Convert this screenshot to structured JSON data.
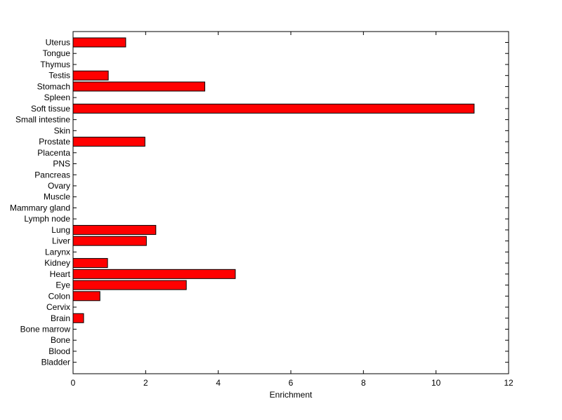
{
  "chart_data": {
    "type": "bar",
    "orientation": "horizontal",
    "categories": [
      "Uterus",
      "Tongue",
      "Thymus",
      "Testis",
      "Stomach",
      "Spleen",
      "Soft tissue",
      "Small intestine",
      "Skin",
      "Prostate",
      "Placenta",
      "PNS",
      "Pancreas",
      "Ovary",
      "Muscle",
      "Mammary gland",
      "Lymph node",
      "Lung",
      "Liver",
      "Larynx",
      "Kidney",
      "Heart",
      "Eye",
      "Colon",
      "Cervix",
      "Brain",
      "Bone marrow",
      "Bone",
      "Blood",
      "Bladder"
    ],
    "values": [
      1.45,
      0,
      0,
      0.97,
      3.63,
      0,
      11.05,
      0,
      0,
      1.98,
      0,
      0,
      0,
      0,
      0,
      0,
      0,
      2.28,
      2.02,
      0,
      0.95,
      4.47,
      3.12,
      0.74,
      0,
      0.29,
      0,
      0,
      0,
      0
    ],
    "xlabel": "Enrichment",
    "ylabel": "",
    "title": "",
    "xlim": [
      0,
      12
    ],
    "xticks": [
      0,
      2,
      4,
      6,
      8,
      10,
      12
    ],
    "grid": false,
    "bar_color": "#ff0000",
    "bar_edge_color": "#000000"
  }
}
